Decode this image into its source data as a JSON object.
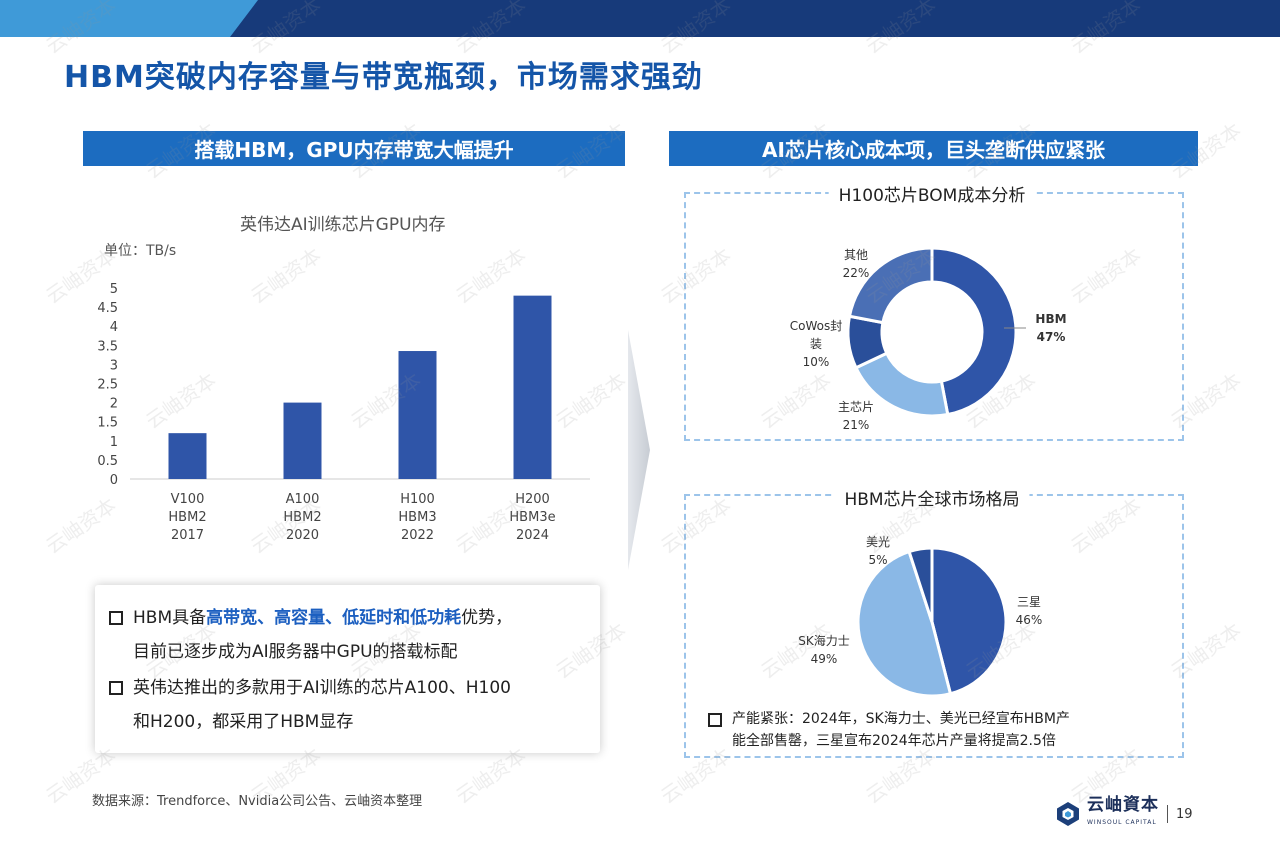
{
  "title": "HBM突破内存容量与带宽瓶颈，市场需求强劲",
  "left_header": "搭载HBM，GPU内存带宽大幅提升",
  "right_header": "AI芯片核心成本项，巨头垄断供应紧张",
  "bar_chart": {
    "title": "英伟达AI训练芯片GPU内存",
    "unit": "单位：TB/s"
  },
  "donut_title": "H100芯片BOM成本分析",
  "pie_title": "HBM芯片全球市场格局",
  "bullets": [
    {
      "pre": "HBM具备",
      "hl": "高带宽、高容量、低延时和低功耗",
      "post": "优势，",
      "line2": "目前已逐步成为AI服务器中GPU的搭载标配"
    },
    {
      "line1": "英伟达推出的多款用于AI训练的芯片A100、H100",
      "line2": "和H200，都采用了HBM显存"
    }
  ],
  "note": {
    "line1": "产能紧张：2024年，SK海力士、美光已经宣布HBM产",
    "line2": "能全部售罄，三星宣布2024年芯片产量将提高2.5倍"
  },
  "source": "数据来源：Trendforce、Nvidia公司公告、云岫资本整理",
  "logo": {
    "name": "云岫資本",
    "sub": "WINSOUL CAPITAL"
  },
  "page_number": "19",
  "watermark": "云岫资本",
  "colors": {
    "dark_blue": "#173a7a",
    "accent_blue": "#1c6cc0",
    "title_blue": "#1455a8",
    "bar": "#2f55a8"
  },
  "chart_data": [
    {
      "type": "bar",
      "title": "英伟达AI训练芯片GPU内存",
      "categories": [
        [
          "V100",
          "HBM2",
          "2017"
        ],
        [
          "A100",
          "HBM2",
          "2020"
        ],
        [
          "H100",
          "HBM3",
          "2022"
        ],
        [
          "H200",
          "HBM3e",
          "2024"
        ]
      ],
      "values": [
        1.2,
        2.0,
        3.35,
        4.8
      ],
      "ylim": [
        0,
        5
      ],
      "yticks": [
        "0",
        "0.5",
        "1",
        "1.5",
        "2",
        "2.5",
        "3",
        "3.5",
        "4",
        "4.5",
        "5"
      ],
      "color": "#2f55a8",
      "grid": false
    },
    {
      "type": "pie",
      "title": "H100芯片BOM成本分析",
      "donut": true,
      "slices": [
        {
          "label": "HBM",
          "value": 47,
          "pct": "47%",
          "color": "#2f55a8"
        },
        {
          "label": "主芯片",
          "value": 21,
          "pct": "21%",
          "color": "#8ab8e6"
        },
        {
          "label": "CoWos封装",
          "value": 10,
          "pct": "10%",
          "color": "#2a4f9a"
        },
        {
          "label": "其他",
          "value": 22,
          "pct": "22%",
          "color": "#4a6fb5"
        }
      ]
    },
    {
      "type": "pie",
      "title": "HBM芯片全球市场格局",
      "donut": false,
      "slices": [
        {
          "label": "三星",
          "value": 46,
          "pct": "46%",
          "color": "#2f55a8"
        },
        {
          "label": "SK海力士",
          "value": 49,
          "pct": "49%",
          "color": "#8ab8e6"
        },
        {
          "label": "美光",
          "value": 5,
          "pct": "5%",
          "color": "#2a4f9a"
        }
      ]
    }
  ]
}
